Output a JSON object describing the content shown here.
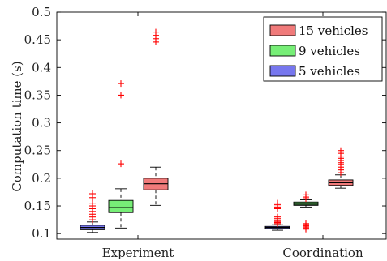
{
  "chart_data": {
    "type": "box",
    "ylabel": "Computation time (s)",
    "ylim": [
      0.09,
      0.5
    ],
    "yticks": [
      0.1,
      0.15,
      0.2,
      0.25,
      0.3,
      0.35,
      0.4,
      0.45,
      0.5
    ],
    "ytick_labels": [
      "0.1",
      "0.15",
      "0.2",
      "0.25",
      "0.3",
      "0.35",
      "0.4",
      "0.45",
      "0.5"
    ],
    "categories": [
      "Experiment",
      "Coordination"
    ],
    "legend_placement": "top-right",
    "series": [
      {
        "name": "5 vehicles",
        "color": "#7777ee",
        "boxes": [
          {
            "category": "Experiment",
            "whisker_low": 0.102,
            "q1": 0.107,
            "median": 0.111,
            "q3": 0.115,
            "whisker_high": 0.121,
            "outliers": [
              0.125,
              0.13,
              0.135,
              0.14,
              0.145,
              0.15,
              0.155,
              0.165,
              0.172
            ]
          },
          {
            "category": "Coordination",
            "whisker_low": 0.106,
            "q1": 0.109,
            "median": 0.111,
            "q3": 0.113,
            "whisker_high": 0.116,
            "outliers": [
              0.118,
              0.12,
              0.122,
              0.124,
              0.127,
              0.13,
              0.145,
              0.148,
              0.152,
              0.155
            ]
          }
        ]
      },
      {
        "name": "9 vehicles",
        "color": "#77ee77",
        "boxes": [
          {
            "category": "Experiment",
            "whisker_low": 0.11,
            "q1": 0.138,
            "median": 0.147,
            "q3": 0.16,
            "whisker_high": 0.181,
            "outliers": [
              0.226,
              0.35,
              0.371
            ]
          },
          {
            "category": "Coordination",
            "whisker_low": 0.148,
            "q1": 0.151,
            "median": 0.153,
            "q3": 0.157,
            "whisker_high": 0.161,
            "outliers": [
              0.108,
              0.11,
              0.112,
              0.114,
              0.116,
              0.118,
              0.163,
              0.166,
              0.17
            ]
          }
        ]
      },
      {
        "name": "15 vehicles",
        "color": "#f07a7a",
        "boxes": [
          {
            "category": "Experiment",
            "whisker_low": 0.151,
            "q1": 0.179,
            "median": 0.19,
            "q3": 0.2,
            "whisker_high": 0.22,
            "outliers": [
              0.446,
              0.452,
              0.458,
              0.464
            ]
          },
          {
            "category": "Coordination",
            "whisker_low": 0.182,
            "q1": 0.187,
            "median": 0.192,
            "q3": 0.197,
            "whisker_high": 0.206,
            "outliers": [
              0.21,
              0.215,
              0.22,
              0.225,
              0.228,
              0.232,
              0.236,
              0.24,
              0.245,
              0.25
            ]
          }
        ]
      }
    ],
    "legend_order": [
      "15 vehicles",
      "9 vehicles",
      "5 vehicles"
    ]
  }
}
